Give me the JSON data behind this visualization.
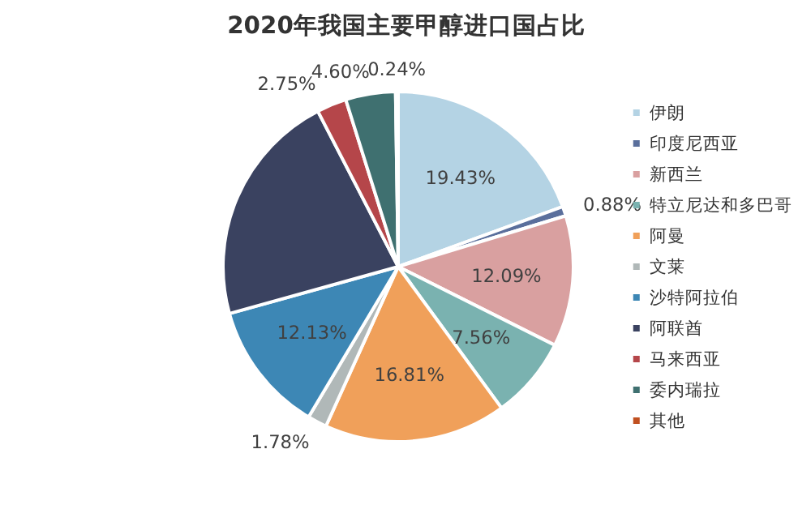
{
  "chart_data": {
    "type": "pie",
    "title": "2020年我国主要甲醇进口国占比",
    "categories": [
      "伊朗",
      "印度尼西亚",
      "新西兰",
      "特立尼达和多巴哥",
      "阿曼",
      "文莱",
      "沙特阿拉伯",
      "阿联酋",
      "马来西亚",
      "委内瑞拉",
      "其他"
    ],
    "values": [
      19.43,
      0.88,
      12.09,
      7.56,
      16.81,
      1.78,
      12.13,
      21.73,
      2.75,
      4.6,
      0.24
    ],
    "colors": [
      "#b4d3e4",
      "#5a6f9c",
      "#d9a0a0",
      "#7ab2b0",
      "#f0a05a",
      "#b0b8b8",
      "#3d87b5",
      "#3a4260",
      "#b5464a",
      "#3f7070",
      "#c05020"
    ],
    "value_labels": [
      "19.43%",
      "0.88%",
      "12.09%",
      "7.56%",
      "16.81%",
      "1.78%",
      "12.13%",
      null,
      "2.75%",
      "4.60%",
      "0.24%"
    ],
    "legend": "right"
  }
}
